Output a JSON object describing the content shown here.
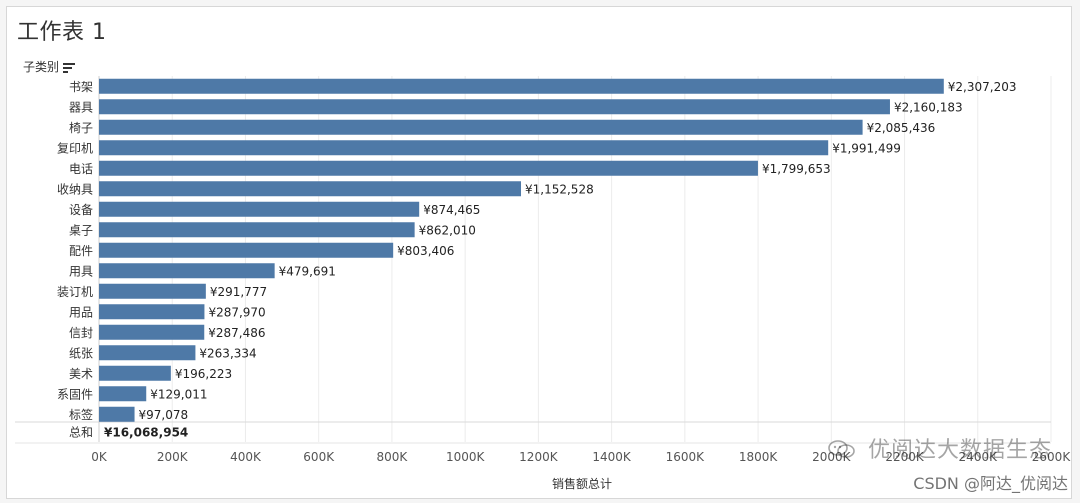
{
  "window": {
    "title": "工作表 1"
  },
  "axis_header": {
    "label": "子类别",
    "icon": "sort-icon"
  },
  "watermark": {
    "text": "优阅达大数据生态",
    "footer": "CSDN @阿达_优阅达"
  },
  "chart_data": {
    "type": "bar",
    "orientation": "horizontal",
    "title": "工作表 1",
    "xlabel": "销售额总计",
    "ylabel": "子类别",
    "categories": [
      "书架",
      "器具",
      "椅子",
      "复印机",
      "电话",
      "收纳具",
      "设备",
      "桌子",
      "配件",
      "用具",
      "装订机",
      "用品",
      "信封",
      "纸张",
      "美术",
      "系固件",
      "标签"
    ],
    "values": [
      2307203,
      2160183,
      2085436,
      1991499,
      1799653,
      1152528,
      874465,
      862010,
      803406,
      479691,
      291777,
      287970,
      287486,
      263334,
      196223,
      129011,
      97078
    ],
    "value_labels": [
      "¥2,307,203",
      "¥2,160,183",
      "¥2,085,436",
      "¥1,991,499",
      "¥1,799,653",
      "¥1,152,528",
      "¥874,465",
      "¥862,010",
      "¥803,406",
      "¥479,691",
      "¥291,777",
      "¥287,970",
      "¥287,486",
      "¥263,334",
      "¥196,223",
      "¥129,011",
      "¥97,078"
    ],
    "total": {
      "label": "总和",
      "value": 16068954,
      "value_label": "¥16,068,954"
    },
    "xlim": [
      0,
      2600000
    ],
    "xticks": [
      0,
      200000,
      400000,
      600000,
      800000,
      1000000,
      1200000,
      1400000,
      1600000,
      1800000,
      2000000,
      2200000,
      2400000,
      2600000
    ],
    "xtick_labels": [
      "0K",
      "200K",
      "400K",
      "600K",
      "800K",
      "1000K",
      "1200K",
      "1400K",
      "1600K",
      "1800K",
      "2000K",
      "2200K",
      "2400K",
      "2600K"
    ],
    "grid": true,
    "bar_color": "#4e79a7"
  }
}
